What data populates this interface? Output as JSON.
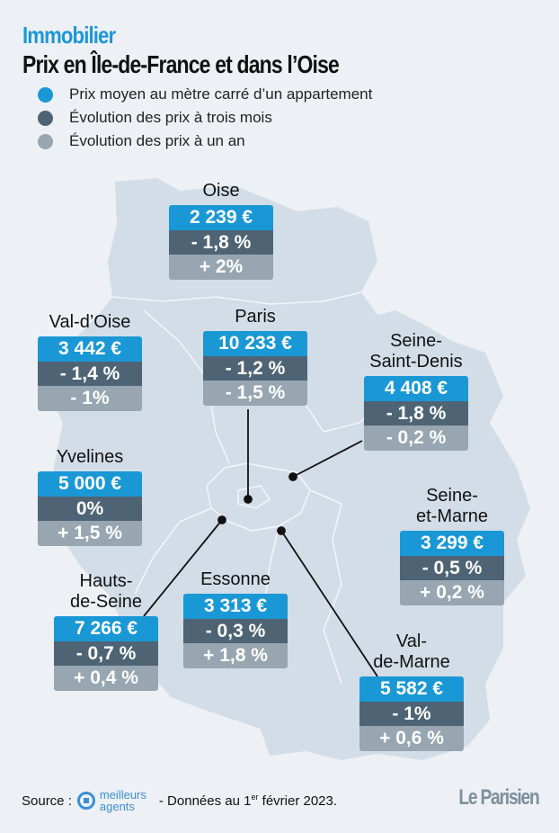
{
  "header": {
    "kicker": "Immobilier",
    "title": "Prix en Île-de-France et dans l’Oise"
  },
  "legend": [
    {
      "label": "Prix moyen au mètre carré d’un appartement",
      "color": "#1a98d5"
    },
    {
      "label": "Évolution des prix à trois mois",
      "color": "#4e6475"
    },
    {
      "label": "Évolution des prix à un an",
      "color": "#97a6b1"
    }
  ],
  "departments": [
    {
      "name": [
        "Oise"
      ],
      "price": "2 239 €",
      "three_months": "- 1,8 %",
      "one_year": "+ 2%"
    },
    {
      "name": [
        "Val-d’Oise"
      ],
      "price": "3 442 €",
      "three_months": "- 1,4 %",
      "one_year": "- 1%"
    },
    {
      "name": [
        "Paris"
      ],
      "price": "10 233 €",
      "three_months": "- 1,2 %",
      "one_year": "- 1,5 %"
    },
    {
      "name": [
        "Seine-",
        "Saint-Denis"
      ],
      "price": "4 408 €",
      "three_months": "- 1,8 %",
      "one_year": "- 0,2 %"
    },
    {
      "name": [
        "Yvelines"
      ],
      "price": "5 000 €",
      "three_months": "0%",
      "one_year": "+ 1,5 %"
    },
    {
      "name": [
        "Seine-",
        "et-Marne"
      ],
      "price": "3 299 €",
      "three_months": "- 0,5 %",
      "one_year": "+ 0,2 %"
    },
    {
      "name": [
        "Hauts-",
        "de-Seine"
      ],
      "price": "7 266 €",
      "three_months": "- 0,7 %",
      "one_year": "+ 0,4 %"
    },
    {
      "name": [
        "Essonne"
      ],
      "price": "3 313 €",
      "three_months": "- 0,3 %",
      "one_year": "+ 1,8 %"
    },
    {
      "name": [
        "Val-",
        "de-Marne"
      ],
      "price": "5 582 €",
      "three_months": "- 1%",
      "one_year": "+ 0,6 %"
    }
  ],
  "footer": {
    "source_label": "Source :",
    "source_logo": [
      "meilleurs",
      "agents"
    ],
    "date_prefix": "- Données au 1",
    "date_sup": "er",
    "date_suffix": " février 2023.",
    "brand": "Le Parisien"
  },
  "colors": {
    "map_fill": "#d3dde7",
    "background": "#edf0f4"
  }
}
